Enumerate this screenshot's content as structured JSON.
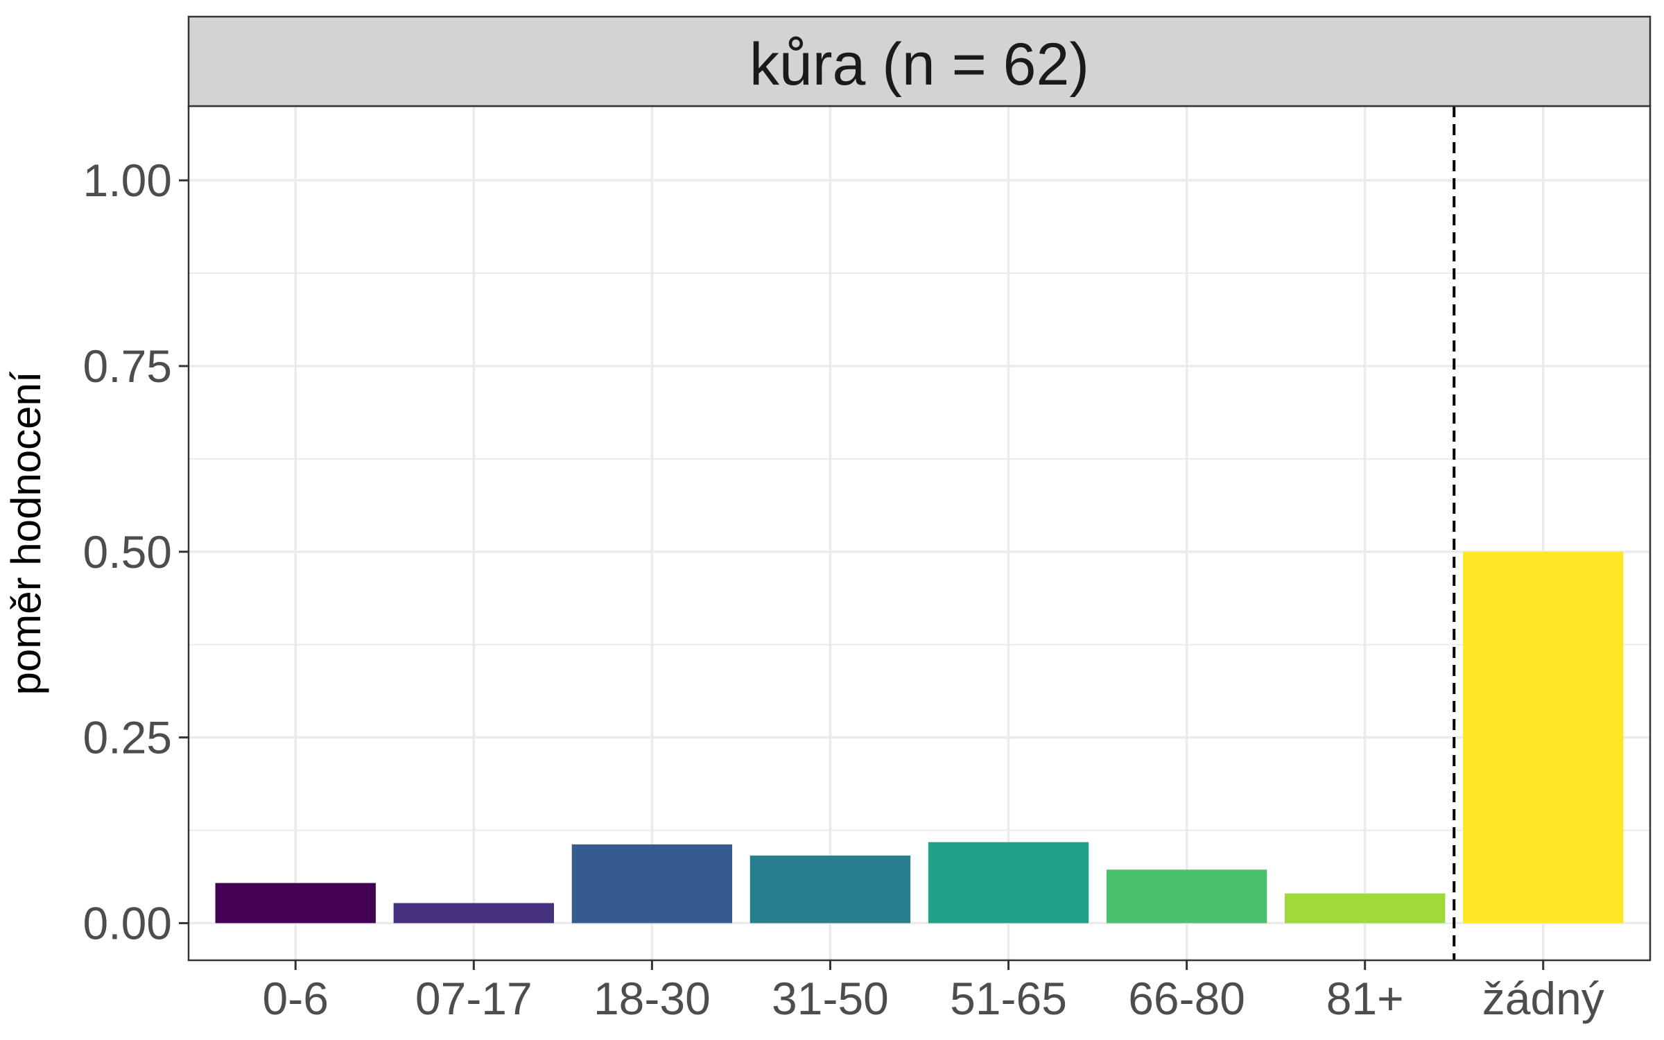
{
  "chart_data": {
    "type": "bar",
    "title": "kůra (n = 62)",
    "xlabel": "",
    "ylabel": "poměr hodnocení",
    "categories": [
      "0-6",
      "07-17",
      "18-30",
      "31-50",
      "51-65",
      "66-80",
      "81+",
      "žádný"
    ],
    "values": [
      0.054,
      0.027,
      0.106,
      0.091,
      0.109,
      0.072,
      0.04,
      0.5
    ],
    "colors": [
      "#440154",
      "#46327E",
      "#365C8D",
      "#277F8E",
      "#1FA187",
      "#4AC16D",
      "#9FDA3A",
      "#FDE725"
    ],
    "ylim": [
      -0.05,
      1.1
    ],
    "yticks": [
      "0.00",
      "0.25",
      "0.50",
      "0.75",
      "1.00"
    ],
    "grid": true,
    "reference_line": {
      "style": "dashed",
      "between": [
        "81+",
        "žádný"
      ]
    },
    "panel_strip_color": "#d3d3d3",
    "legend": "none"
  }
}
